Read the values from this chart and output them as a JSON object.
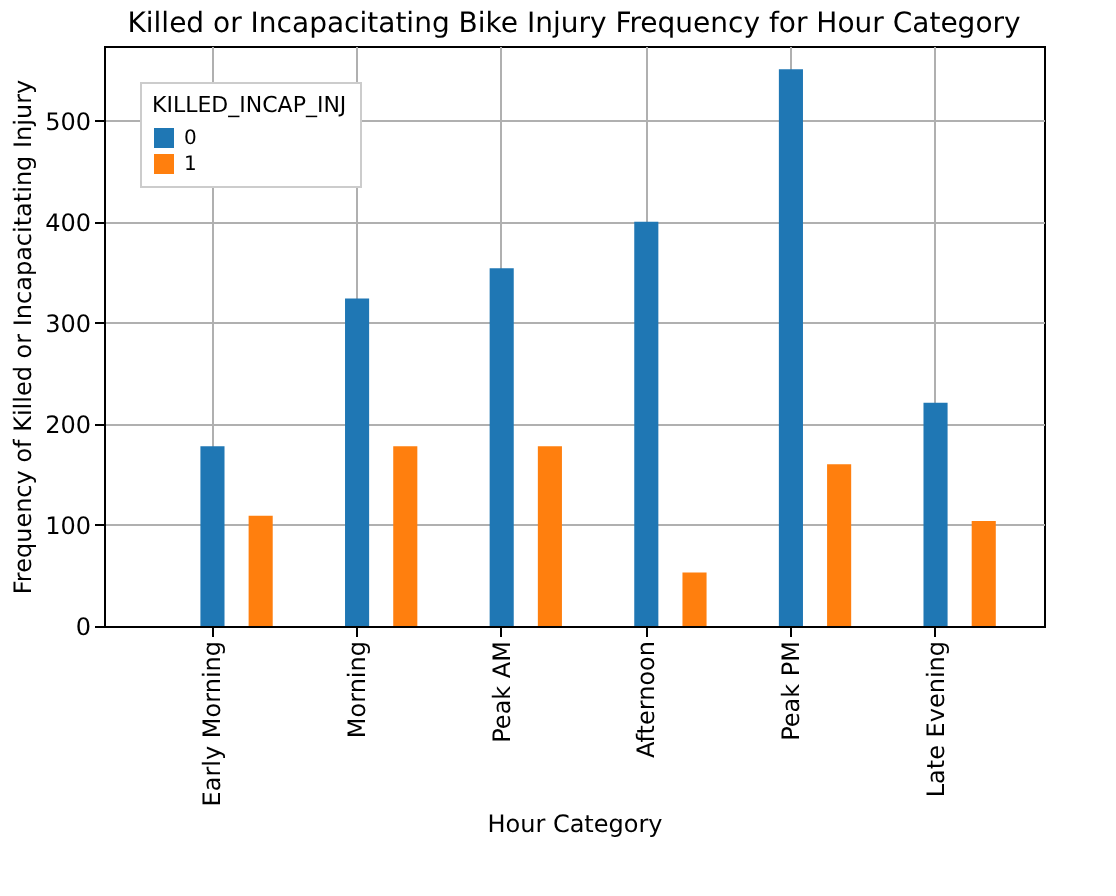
{
  "chart_data": {
    "type": "bar",
    "title": "Killed or Incapacitating Bike Injury Frequency for Hour Category",
    "xlabel": "Hour Category",
    "ylabel": "Frequency of Killed or Incapacitating Injury",
    "legend_title": "KILLED_INCAP_INJ",
    "categories": [
      "Early Morning",
      "Morning",
      "Peak AM",
      "Afternoon",
      "Peak PM",
      "Late Evening"
    ],
    "series": [
      {
        "name": "0",
        "color": "#1f77b4",
        "values": [
          178,
          324,
          354,
          400,
          551,
          221
        ]
      },
      {
        "name": "1",
        "color": "#ff7f0e",
        "values": [
          109,
          178,
          178,
          53,
          160,
          104
        ]
      }
    ],
    "ylim": [
      0,
      574
    ],
    "yticks": [
      0,
      100,
      200,
      300,
      400,
      500
    ],
    "grid": true,
    "legend": "top left"
  }
}
